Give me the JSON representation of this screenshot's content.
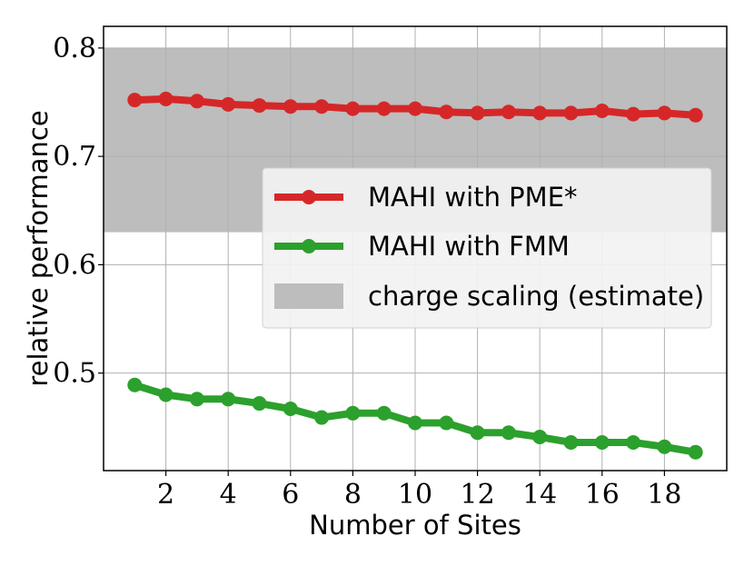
{
  "chart_data": {
    "type": "line",
    "xlabel": "Number of Sites",
    "ylabel": "relative performance",
    "xlim": [
      0,
      20
    ],
    "ylim": [
      0.41,
      0.82
    ],
    "x_ticks": [
      2,
      4,
      6,
      8,
      10,
      12,
      14,
      16,
      18
    ],
    "y_ticks": [
      0.5,
      0.6,
      0.7,
      0.8
    ],
    "y_tick_labels": [
      "0.5",
      "0.6",
      "0.7",
      "0.8"
    ],
    "grid": true,
    "legend_position": "center-right",
    "x": [
      1,
      2,
      3,
      4,
      5,
      6,
      7,
      8,
      9,
      10,
      11,
      12,
      13,
      14,
      15,
      16,
      17,
      18,
      19
    ],
    "series": [
      {
        "name": "MAHI with PME*",
        "color": "#d62728",
        "values": [
          0.752,
          0.753,
          0.751,
          0.748,
          0.747,
          0.746,
          0.746,
          0.744,
          0.744,
          0.744,
          0.741,
          0.74,
          0.741,
          0.74,
          0.74,
          0.742,
          0.739,
          0.74,
          0.738
        ]
      },
      {
        "name": "MAHI with FMM",
        "color": "#2ca02c",
        "values": [
          0.489,
          0.48,
          0.476,
          0.476,
          0.472,
          0.467,
          0.459,
          0.463,
          0.463,
          0.454,
          0.454,
          0.445,
          0.445,
          0.441,
          0.436,
          0.436,
          0.436,
          0.432,
          0.427
        ]
      }
    ],
    "band": {
      "name": "charge scaling (estimate)",
      "color": "#bdbdbd",
      "y_range": [
        0.63,
        0.8
      ]
    }
  }
}
